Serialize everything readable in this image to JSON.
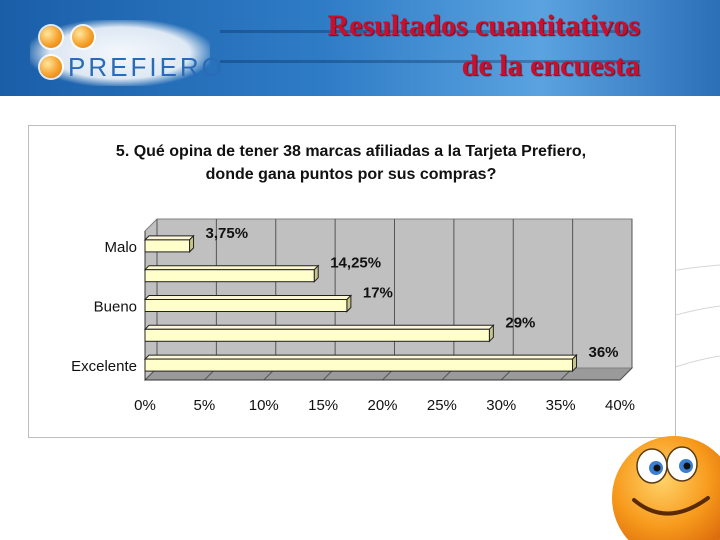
{
  "header": {
    "title_line1": "Resultados cuantitativos",
    "title_line2": "de la encuesta",
    "logo_text": "PREFIERO"
  },
  "colors": {
    "banner": "#2f7cc6",
    "title": "#c8102e",
    "bar_fill": "#ffffcc",
    "bar_edge": "#222222",
    "plot_wall": "#c0c0c0"
  },
  "chart_data": {
    "type": "bar",
    "orientation": "horizontal",
    "title_line1": "5. Qué opina de tener 38 marcas afiliadas a la Tarjeta Prefiero,",
    "title_line2": "donde gana puntos por sus compras?",
    "categories": [
      "Malo",
      "",
      "Bueno",
      "",
      "Excelente"
    ],
    "values": [
      3.75,
      14.25,
      17,
      29,
      36
    ],
    "data_labels": [
      "3,75%",
      "14,25%",
      "17%",
      "29%",
      "36%"
    ],
    "xlim": [
      0,
      40
    ],
    "x_ticks": [
      0,
      5,
      10,
      15,
      20,
      25,
      30,
      35,
      40
    ],
    "x_tick_labels": [
      "0%",
      "5%",
      "10%",
      "15%",
      "20%",
      "25%",
      "30%",
      "35%",
      "40%"
    ],
    "grid": true,
    "legend": "none"
  }
}
